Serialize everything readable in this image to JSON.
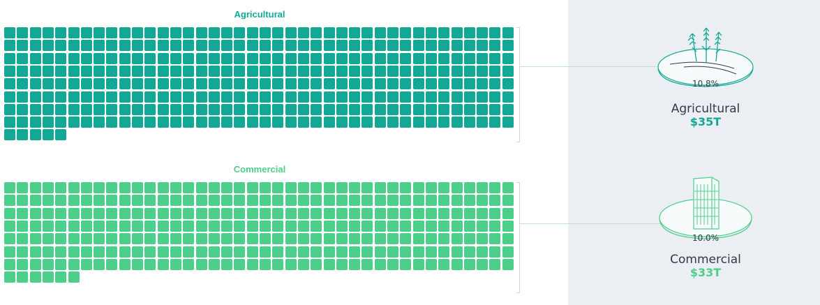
{
  "chart_data": [
    {
      "type": "waffle",
      "title": "Agricultural",
      "percent_label": "10.8%",
      "name": "Agricultural",
      "value_label": "$35T",
      "filled_cells": 325,
      "columns": 40,
      "color": "#13a896"
    },
    {
      "type": "waffle",
      "title": "Commercial",
      "percent_label": "10.0%",
      "name": "Commercial",
      "value_label": "$33T",
      "filled_cells": 286,
      "columns": 40,
      "color": "#4ccf8b"
    }
  ],
  "icons": [
    "wheat-icon",
    "building-icon"
  ],
  "colors": {
    "panel": "#ebeef2",
    "bracket": "#cfd6dc",
    "label_text": "#2e3b46"
  }
}
